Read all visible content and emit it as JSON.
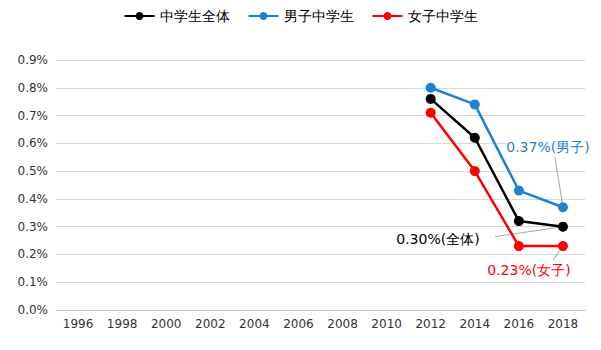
{
  "chart_data": {
    "type": "line",
    "categories": [
      "1996",
      "1998",
      "2000",
      "2002",
      "2004",
      "2006",
      "2008",
      "2010",
      "2012",
      "2014",
      "2016",
      "2018"
    ],
    "series": [
      {
        "name": "中学生全体",
        "color": "#000000",
        "marker": "circle",
        "values": [
          null,
          null,
          null,
          null,
          null,
          null,
          null,
          null,
          0.76,
          0.62,
          0.32,
          0.3
        ]
      },
      {
        "name": "男子中学生",
        "color": "#1f82d0",
        "marker": "circle",
        "values": [
          null,
          null,
          null,
          null,
          null,
          null,
          null,
          null,
          0.8,
          0.74,
          0.43,
          0.37
        ]
      },
      {
        "name": "女子中学生",
        "color": "#ff0000",
        "marker": "circle",
        "values": [
          null,
          null,
          null,
          null,
          null,
          null,
          null,
          null,
          0.71,
          0.5,
          0.23,
          0.23
        ]
      }
    ],
    "ylim": [
      0,
      0.9
    ],
    "yticks": [
      {
        "value": 0,
        "label": "0.0%"
      },
      {
        "value": 0.1,
        "label": "0.1%"
      },
      {
        "value": 0.2,
        "label": "0.2%"
      },
      {
        "value": 0.3,
        "label": "0.3%"
      },
      {
        "value": 0.4,
        "label": "0.4%"
      },
      {
        "value": 0.5,
        "label": "0.5%"
      },
      {
        "value": 0.6,
        "label": "0.6%"
      },
      {
        "value": 0.7,
        "label": "0.7%"
      },
      {
        "value": 0.8,
        "label": "0.8%"
      },
      {
        "value": 0.9,
        "label": "0.9%"
      }
    ],
    "grid": true,
    "legend": "top",
    "annotations": [
      {
        "text": "0.37%(男子)",
        "series": "男子中学生",
        "category": "2018",
        "value": 0.37
      },
      {
        "text": "0.30%(全体)",
        "series": "中学生全体",
        "category": "2018",
        "value": 0.3
      },
      {
        "text": "0.23%(女子)",
        "series": "女子中学生",
        "category": "2018",
        "value": 0.23
      }
    ]
  }
}
